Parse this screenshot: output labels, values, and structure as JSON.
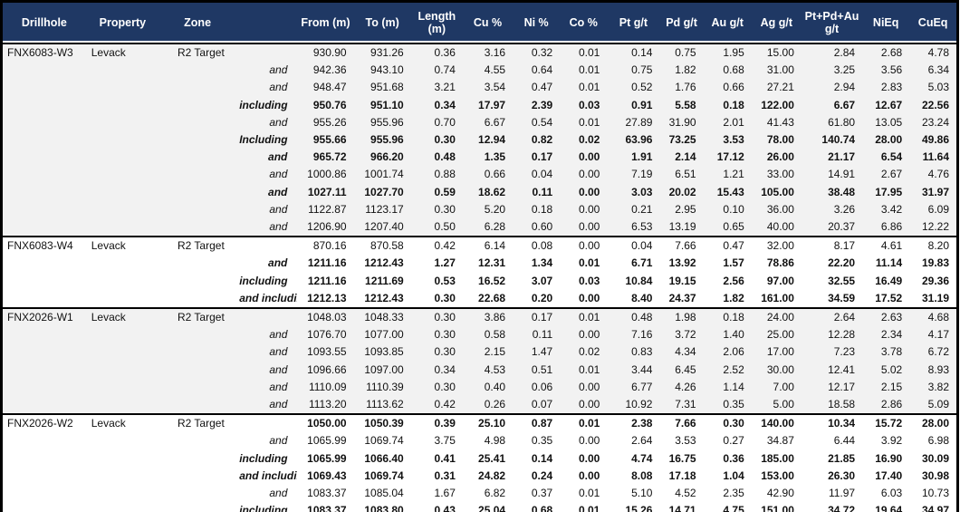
{
  "table": {
    "header_bg_color": "#1F3864",
    "header_text_color": "#FFFFFF",
    "group_shade_color": "#F2F2F2",
    "border_color": "#000000",
    "columns": [
      {
        "key": "drillhole",
        "label": "Drillhole"
      },
      {
        "key": "property",
        "label": "Property"
      },
      {
        "key": "zone",
        "label": "Zone"
      },
      {
        "key": "qualifier",
        "label": ""
      },
      {
        "key": "from",
        "label": "From (m)"
      },
      {
        "key": "to",
        "label": "To (m)"
      },
      {
        "key": "length",
        "label": "Length\n(m)"
      },
      {
        "key": "cu",
        "label": "Cu %"
      },
      {
        "key": "ni",
        "label": "Ni %"
      },
      {
        "key": "co",
        "label": "Co %"
      },
      {
        "key": "pt",
        "label": "Pt g/t"
      },
      {
        "key": "pd",
        "label": "Pd g/t"
      },
      {
        "key": "au",
        "label": "Au g/t"
      },
      {
        "key": "ag",
        "label": "Ag g/t"
      },
      {
        "key": "pt-pd-au",
        "label": "Pt+Pd+Au\ng/t"
      },
      {
        "key": "nieq",
        "label": "NiEq"
      },
      {
        "key": "cueq",
        "label": "CuEq"
      }
    ],
    "value_keys": [
      "from",
      "to",
      "length",
      "cu",
      "ni",
      "co",
      "pt",
      "pd",
      "au",
      "ag",
      "pt-pd-au",
      "nieq",
      "cueq"
    ],
    "groups": [
      {
        "drillhole": "FNX6083-W3",
        "property": "Levack",
        "zone": "R2 Target",
        "rows": [
          {
            "qualifier": "",
            "bold": false,
            "values": [
              "930.90",
              "931.26",
              "0.36",
              "3.16",
              "0.32",
              "0.01",
              "0.14",
              "0.75",
              "1.95",
              "15.00",
              "2.84",
              "2.68",
              "4.78"
            ]
          },
          {
            "qualifier": "and",
            "bold": false,
            "values": [
              "942.36",
              "943.10",
              "0.74",
              "4.55",
              "0.64",
              "0.01",
              "0.75",
              "1.82",
              "0.68",
              "31.00",
              "3.25",
              "3.56",
              "6.34"
            ]
          },
          {
            "qualifier": "and",
            "bold": false,
            "values": [
              "948.47",
              "951.68",
              "3.21",
              "3.54",
              "0.47",
              "0.01",
              "0.52",
              "1.76",
              "0.66",
              "27.21",
              "2.94",
              "2.83",
              "5.03"
            ]
          },
          {
            "qualifier": "including",
            "bold": true,
            "values": [
              "950.76",
              "951.10",
              "0.34",
              "17.97",
              "2.39",
              "0.03",
              "0.91",
              "5.58",
              "0.18",
              "122.00",
              "6.67",
              "12.67",
              "22.56"
            ]
          },
          {
            "qualifier": "and",
            "bold": false,
            "values": [
              "955.26",
              "955.96",
              "0.70",
              "6.67",
              "0.54",
              "0.01",
              "27.89",
              "31.90",
              "2.01",
              "41.43",
              "61.80",
              "13.05",
              "23.24"
            ]
          },
          {
            "qualifier": "Including",
            "bold": true,
            "values": [
              "955.66",
              "955.96",
              "0.30",
              "12.94",
              "0.82",
              "0.02",
              "63.96",
              "73.25",
              "3.53",
              "78.00",
              "140.74",
              "28.00",
              "49.86"
            ]
          },
          {
            "qualifier": "and",
            "bold": true,
            "values": [
              "965.72",
              "966.20",
              "0.48",
              "1.35",
              "0.17",
              "0.00",
              "1.91",
              "2.14",
              "17.12",
              "26.00",
              "21.17",
              "6.54",
              "11.64"
            ]
          },
          {
            "qualifier": "and",
            "bold": false,
            "values": [
              "1000.86",
              "1001.74",
              "0.88",
              "0.66",
              "0.04",
              "0.00",
              "7.19",
              "6.51",
              "1.21",
              "33.00",
              "14.91",
              "2.67",
              "4.76"
            ]
          },
          {
            "qualifier": "and",
            "bold": true,
            "values": [
              "1027.11",
              "1027.70",
              "0.59",
              "18.62",
              "0.11",
              "0.00",
              "3.03",
              "20.02",
              "15.43",
              "105.00",
              "38.48",
              "17.95",
              "31.97"
            ]
          },
          {
            "qualifier": "and",
            "bold": false,
            "values": [
              "1122.87",
              "1123.17",
              "0.30",
              "5.20",
              "0.18",
              "0.00",
              "0.21",
              "2.95",
              "0.10",
              "36.00",
              "3.26",
              "3.42",
              "6.09"
            ]
          },
          {
            "qualifier": "and",
            "bold": false,
            "values": [
              "1206.90",
              "1207.40",
              "0.50",
              "6.28",
              "0.60",
              "0.00",
              "6.53",
              "13.19",
              "0.65",
              "40.00",
              "20.37",
              "6.86",
              "12.22"
            ]
          }
        ]
      },
      {
        "drillhole": "FNX6083-W4",
        "property": "Levack",
        "zone": "R2 Target",
        "rows": [
          {
            "qualifier": "",
            "bold": false,
            "values": [
              "870.16",
              "870.58",
              "0.42",
              "6.14",
              "0.08",
              "0.00",
              "0.04",
              "7.66",
              "0.47",
              "32.00",
              "8.17",
              "4.61",
              "8.20"
            ]
          },
          {
            "qualifier": "and",
            "bold": true,
            "values": [
              "1211.16",
              "1212.43",
              "1.27",
              "12.31",
              "1.34",
              "0.01",
              "6.71",
              "13.92",
              "1.57",
              "78.86",
              "22.20",
              "11.14",
              "19.83"
            ]
          },
          {
            "qualifier": "including",
            "bold": true,
            "values": [
              "1211.16",
              "1211.69",
              "0.53",
              "16.52",
              "3.07",
              "0.03",
              "10.84",
              "19.15",
              "2.56",
              "97.00",
              "32.55",
              "16.49",
              "29.36"
            ]
          },
          {
            "qualifier": "and including",
            "bold": true,
            "values": [
              "1212.13",
              "1212.43",
              "0.30",
              "22.68",
              "0.20",
              "0.00",
              "8.40",
              "24.37",
              "1.82",
              "161.00",
              "34.59",
              "17.52",
              "31.19"
            ]
          }
        ]
      },
      {
        "drillhole": "FNX2026-W1",
        "property": "Levack",
        "zone": "R2 Target",
        "rows": [
          {
            "qualifier": "",
            "bold": false,
            "values": [
              "1048.03",
              "1048.33",
              "0.30",
              "3.86",
              "0.17",
              "0.01",
              "0.48",
              "1.98",
              "0.18",
              "24.00",
              "2.64",
              "2.63",
              "4.68"
            ]
          },
          {
            "qualifier": "and",
            "bold": false,
            "values": [
              "1076.70",
              "1077.00",
              "0.30",
              "0.58",
              "0.11",
              "0.00",
              "7.16",
              "3.72",
              "1.40",
              "25.00",
              "12.28",
              "2.34",
              "4.17"
            ]
          },
          {
            "qualifier": "and",
            "bold": false,
            "values": [
              "1093.55",
              "1093.85",
              "0.30",
              "2.15",
              "1.47",
              "0.02",
              "0.83",
              "4.34",
              "2.06",
              "17.00",
              "7.23",
              "3.78",
              "6.72"
            ]
          },
          {
            "qualifier": "and",
            "bold": false,
            "values": [
              "1096.66",
              "1097.00",
              "0.34",
              "4.53",
              "0.51",
              "0.01",
              "3.44",
              "6.45",
              "2.52",
              "30.00",
              "12.41",
              "5.02",
              "8.93"
            ]
          },
          {
            "qualifier": "and",
            "bold": false,
            "values": [
              "1110.09",
              "1110.39",
              "0.30",
              "0.40",
              "0.06",
              "0.00",
              "6.77",
              "4.26",
              "1.14",
              "7.00",
              "12.17",
              "2.15",
              "3.82"
            ]
          },
          {
            "qualifier": "and",
            "bold": false,
            "values": [
              "1113.20",
              "1113.62",
              "0.42",
              "0.26",
              "0.07",
              "0.00",
              "10.92",
              "7.31",
              "0.35",
              "5.00",
              "18.58",
              "2.86",
              "5.09"
            ]
          }
        ]
      },
      {
        "drillhole": "FNX2026-W2",
        "property": "Levack",
        "zone": "R2 Target",
        "rows": [
          {
            "qualifier": "",
            "bold": true,
            "values": [
              "1050.00",
              "1050.39",
              "0.39",
              "25.10",
              "0.87",
              "0.01",
              "2.38",
              "7.66",
              "0.30",
              "140.00",
              "10.34",
              "15.72",
              "28.00"
            ]
          },
          {
            "qualifier": "and",
            "bold": false,
            "values": [
              "1065.99",
              "1069.74",
              "3.75",
              "4.98",
              "0.35",
              "0.00",
              "2.64",
              "3.53",
              "0.27",
              "34.87",
              "6.44",
              "3.92",
              "6.98"
            ]
          },
          {
            "qualifier": "including",
            "bold": true,
            "values": [
              "1065.99",
              "1066.40",
              "0.41",
              "25.41",
              "0.14",
              "0.00",
              "4.74",
              "16.75",
              "0.36",
              "185.00",
              "21.85",
              "16.90",
              "30.09"
            ]
          },
          {
            "qualifier": "and including",
            "bold": true,
            "values": [
              "1069.43",
              "1069.74",
              "0.31",
              "24.82",
              "0.24",
              "0.00",
              "8.08",
              "17.18",
              "1.04",
              "153.00",
              "26.30",
              "17.40",
              "30.98"
            ]
          },
          {
            "qualifier": "and",
            "bold": false,
            "values": [
              "1083.37",
              "1085.04",
              "1.67",
              "6.82",
              "0.37",
              "0.01",
              "5.10",
              "4.52",
              "2.35",
              "42.90",
              "11.97",
              "6.03",
              "10.73"
            ]
          },
          {
            "qualifier": "including",
            "bold": true,
            "values": [
              "1083.37",
              "1083.80",
              "0.43",
              "25.04",
              "0.68",
              "0.01",
              "15.26",
              "14.71",
              "4.75",
              "151.00",
              "34.72",
              "19.64",
              "34.97"
            ]
          }
        ]
      }
    ]
  }
}
